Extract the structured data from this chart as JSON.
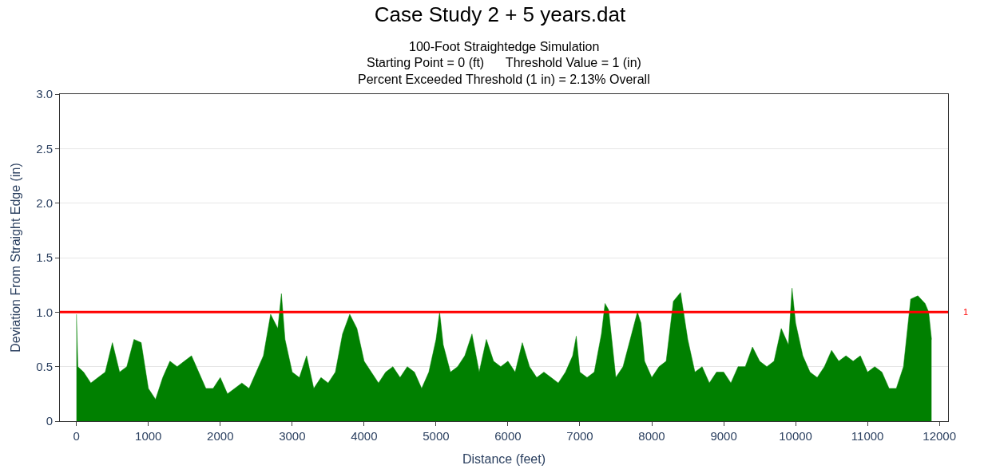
{
  "chart_data": {
    "type": "area",
    "title": "Case Study 2 + 5 years.dat",
    "subtitle": "100-Foot Straightedge Simulation",
    "annotations": [
      "Starting Point = 0 (ft)",
      "Threshold Value = 1 (in)",
      "Percent Exceeded Threshold (1 in) = 2.13% Overall"
    ],
    "xlabel": "Distance (feet)",
    "ylabel": "Deviation From Straight Edge (in)",
    "x": [
      0,
      20,
      100,
      200,
      300,
      400,
      500,
      600,
      700,
      800,
      900,
      1000,
      1100,
      1200,
      1300,
      1400,
      1500,
      1600,
      1700,
      1800,
      1900,
      2000,
      2100,
      2200,
      2300,
      2400,
      2500,
      2600,
      2700,
      2800,
      2850,
      2900,
      3000,
      3100,
      3200,
      3300,
      3400,
      3500,
      3600,
      3700,
      3800,
      3900,
      4000,
      4100,
      4200,
      4300,
      4400,
      4500,
      4600,
      4700,
      4800,
      4900,
      5000,
      5050,
      5100,
      5200,
      5300,
      5400,
      5500,
      5600,
      5700,
      5800,
      5900,
      6000,
      6100,
      6200,
      6300,
      6400,
      6500,
      6600,
      6700,
      6800,
      6900,
      6950,
      7000,
      7100,
      7200,
      7300,
      7350,
      7400,
      7500,
      7600,
      7700,
      7800,
      7850,
      7900,
      8000,
      8100,
      8200,
      8300,
      8400,
      8500,
      8600,
      8700,
      8800,
      8900,
      9000,
      9100,
      9200,
      9300,
      9400,
      9500,
      9600,
      9700,
      9800,
      9900,
      9950,
      10000,
      10100,
      10200,
      10300,
      10400,
      10500,
      10600,
      10700,
      10800,
      10900,
      11000,
      11100,
      11200,
      11300,
      11400,
      11500,
      11600,
      11700,
      11800,
      11850,
      11890
    ],
    "series": [
      {
        "color": "#008000",
        "values": [
          0.98,
          0.5,
          0.45,
          0.35,
          0.4,
          0.45,
          0.72,
          0.45,
          0.5,
          0.75,
          0.72,
          0.3,
          0.2,
          0.4,
          0.55,
          0.5,
          0.55,
          0.6,
          0.45,
          0.3,
          0.3,
          0.4,
          0.25,
          0.3,
          0.35,
          0.3,
          0.45,
          0.6,
          0.98,
          0.85,
          1.17,
          0.75,
          0.45,
          0.4,
          0.6,
          0.3,
          0.4,
          0.35,
          0.45,
          0.8,
          0.98,
          0.85,
          0.55,
          0.45,
          0.35,
          0.45,
          0.5,
          0.4,
          0.5,
          0.45,
          0.3,
          0.45,
          0.75,
          1.0,
          0.7,
          0.45,
          0.5,
          0.6,
          0.8,
          0.45,
          0.75,
          0.55,
          0.5,
          0.55,
          0.45,
          0.72,
          0.5,
          0.4,
          0.45,
          0.4,
          0.35,
          0.45,
          0.6,
          0.78,
          0.45,
          0.4,
          0.45,
          0.8,
          1.08,
          1.02,
          0.4,
          0.5,
          0.75,
          1.0,
          0.9,
          0.55,
          0.4,
          0.5,
          0.55,
          1.1,
          1.18,
          0.75,
          0.45,
          0.5,
          0.35,
          0.45,
          0.45,
          0.35,
          0.5,
          0.5,
          0.68,
          0.55,
          0.5,
          0.55,
          0.85,
          0.7,
          1.22,
          0.9,
          0.6,
          0.45,
          0.4,
          0.5,
          0.65,
          0.55,
          0.6,
          0.55,
          0.6,
          0.45,
          0.5,
          0.45,
          0.3,
          0.3,
          0.5,
          1.12,
          1.15,
          1.08,
          1.0,
          0.75
        ]
      }
    ],
    "xlim": [
      -230,
      12120
    ],
    "ylim": [
      0,
      3
    ],
    "xticks": [
      0,
      1000,
      2000,
      3000,
      4000,
      5000,
      6000,
      7000,
      8000,
      9000,
      10000,
      11000,
      12000
    ],
    "yticks": [
      0,
      0.5,
      {
        "value": 1,
        "label": "1.0"
      },
      1.5,
      {
        "value": 2,
        "label": "2.0"
      },
      2.5,
      {
        "value": 3,
        "label": "3.0"
      }
    ],
    "ref_lines": [
      {
        "axis": "y",
        "value": 1,
        "label": "1",
        "color": "#ff0000"
      }
    ],
    "grid": "y"
  }
}
